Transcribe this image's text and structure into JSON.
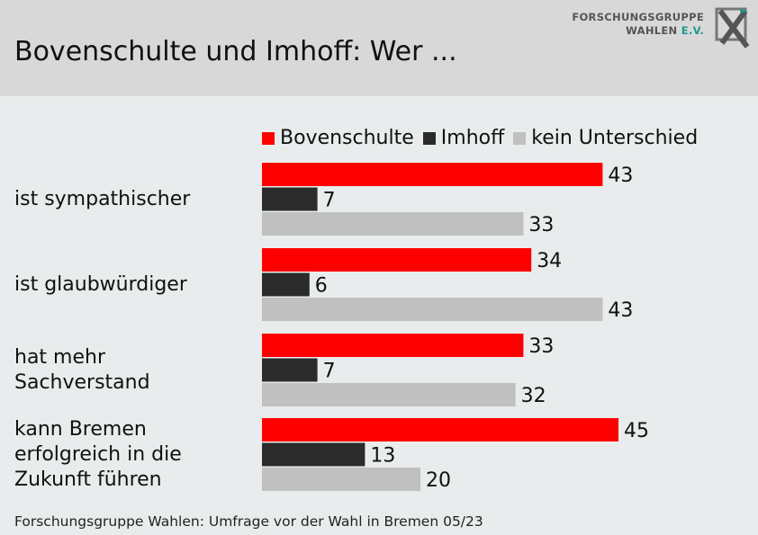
{
  "header": {
    "title": "Bovenschulte und Imhoff: Wer ...",
    "logo_line1": "FORSCHUNGSGRUPPE",
    "logo_line2_main": "WAHLEN",
    "logo_line2_ev": "E.V."
  },
  "footer": {
    "source": "Forschungsgruppe Wahlen: Umfrage vor der Wahl in Bremen 05/23"
  },
  "chart_data": {
    "type": "bar",
    "orientation": "horizontal",
    "categories": [
      "ist sympathischer",
      "ist glaubwürdiger",
      "hat mehr\nSachverstand",
      "kann Bremen\nerfolgreich in die\nZukunft führen"
    ],
    "series": [
      {
        "name": "Bovenschulte",
        "color": "#ff0000",
        "values": [
          43,
          34,
          33,
          45
        ]
      },
      {
        "name": "Imhoff",
        "color": "#2b2b2b",
        "values": [
          7,
          6,
          7,
          13
        ]
      },
      {
        "name": "kein Unterschied",
        "color": "#c0c0c0",
        "values": [
          33,
          43,
          32,
          20
        ]
      }
    ],
    "legend_position": "top",
    "grid": false,
    "data_labels": true
  }
}
